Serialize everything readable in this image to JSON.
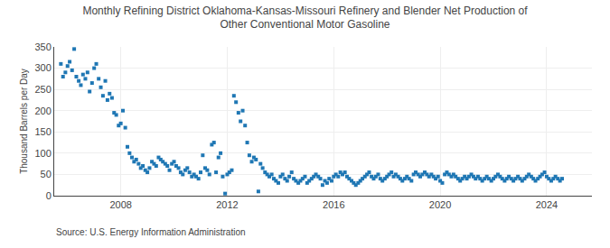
{
  "chart_data": {
    "type": "scatter",
    "title": "Monthly Refining District Oklahoma-Kansas-Missouri Refinery and Blender Net Production of\nOther Conventional Motor Gasoline",
    "ylabel": "Thousand Barrels per Day",
    "annotations": [
      "Source: U.S. Energy Information Administration"
    ],
    "marker": "square",
    "grid": true,
    "xlim": [
      2005.5,
      2025.7
    ],
    "ylim": [
      0,
      350
    ],
    "xticks": [
      2008,
      2012,
      2016,
      2020,
      2024
    ],
    "yticks": [
      0,
      50,
      100,
      150,
      200,
      250,
      300,
      350
    ],
    "x": [
      2005.75,
      2005.83,
      2005.92,
      2006.0,
      2006.08,
      2006.17,
      2006.25,
      2006.33,
      2006.42,
      2006.5,
      2006.58,
      2006.67,
      2006.75,
      2006.83,
      2006.92,
      2007.0,
      2007.08,
      2007.17,
      2007.25,
      2007.33,
      2007.42,
      2007.5,
      2007.58,
      2007.67,
      2007.75,
      2007.83,
      2007.92,
      2008.0,
      2008.08,
      2008.17,
      2008.25,
      2008.33,
      2008.42,
      2008.5,
      2008.58,
      2008.67,
      2008.75,
      2008.83,
      2008.92,
      2009.0,
      2009.08,
      2009.17,
      2009.25,
      2009.33,
      2009.42,
      2009.5,
      2009.58,
      2009.67,
      2009.75,
      2009.83,
      2009.92,
      2010.0,
      2010.08,
      2010.17,
      2010.25,
      2010.33,
      2010.42,
      2010.5,
      2010.58,
      2010.67,
      2010.75,
      2010.83,
      2010.92,
      2011.0,
      2011.08,
      2011.17,
      2011.25,
      2011.33,
      2011.42,
      2011.5,
      2011.58,
      2011.67,
      2011.75,
      2011.83,
      2011.92,
      2012.0,
      2012.08,
      2012.17,
      2012.25,
      2012.33,
      2012.42,
      2012.5,
      2012.58,
      2012.67,
      2012.75,
      2012.83,
      2012.92,
      2013.0,
      2013.08,
      2013.17,
      2013.25,
      2013.33,
      2013.42,
      2013.5,
      2013.58,
      2013.67,
      2013.75,
      2013.83,
      2013.92,
      2014.0,
      2014.08,
      2014.17,
      2014.25,
      2014.33,
      2014.42,
      2014.5,
      2014.58,
      2014.67,
      2014.75,
      2014.83,
      2014.92,
      2015.0,
      2015.08,
      2015.17,
      2015.25,
      2015.33,
      2015.42,
      2015.5,
      2015.58,
      2015.67,
      2015.75,
      2015.83,
      2015.92,
      2016.0,
      2016.08,
      2016.17,
      2016.25,
      2016.33,
      2016.42,
      2016.5,
      2016.58,
      2016.67,
      2016.75,
      2016.83,
      2016.92,
      2017.0,
      2017.08,
      2017.17,
      2017.25,
      2017.33,
      2017.42,
      2017.5,
      2017.58,
      2017.67,
      2017.75,
      2017.83,
      2017.92,
      2018.0,
      2018.08,
      2018.17,
      2018.25,
      2018.33,
      2018.42,
      2018.5,
      2018.58,
      2018.67,
      2018.75,
      2018.83,
      2018.92,
      2019.0,
      2019.08,
      2019.17,
      2019.25,
      2019.33,
      2019.42,
      2019.5,
      2019.58,
      2019.67,
      2019.75,
      2019.83,
      2019.92,
      2020.0,
      2020.08,
      2020.17,
      2020.25,
      2020.33,
      2020.42,
      2020.5,
      2020.58,
      2020.67,
      2020.75,
      2020.83,
      2020.92,
      2021.0,
      2021.08,
      2021.17,
      2021.25,
      2021.33,
      2021.42,
      2021.5,
      2021.58,
      2021.67,
      2021.75,
      2021.83,
      2021.92,
      2022.0,
      2022.08,
      2022.17,
      2022.25,
      2022.33,
      2022.42,
      2022.5,
      2022.58,
      2022.67,
      2022.75,
      2022.83,
      2022.92,
      2023.0,
      2023.08,
      2023.17,
      2023.25,
      2023.33,
      2023.42,
      2023.5,
      2023.58,
      2023.67,
      2023.75,
      2023.83,
      2023.92,
      2024.0,
      2024.08,
      2024.17,
      2024.25,
      2024.33,
      2024.42,
      2024.5,
      2024.58
    ],
    "values": [
      310,
      280,
      290,
      305,
      315,
      295,
      345,
      280,
      270,
      260,
      285,
      275,
      290,
      245,
      265,
      300,
      310,
      275,
      255,
      235,
      270,
      225,
      240,
      230,
      195,
      190,
      165,
      170,
      200,
      160,
      115,
      100,
      90,
      80,
      85,
      75,
      65,
      70,
      60,
      55,
      65,
      80,
      75,
      70,
      90,
      85,
      80,
      75,
      70,
      60,
      75,
      80,
      70,
      65,
      55,
      50,
      60,
      65,
      55,
      45,
      50,
      45,
      40,
      55,
      95,
      65,
      60,
      50,
      120,
      125,
      55,
      90,
      100,
      45,
      5,
      50,
      55,
      60,
      235,
      220,
      195,
      175,
      200,
      165,
      125,
      95,
      80,
      90,
      85,
      10,
      75,
      65,
      55,
      50,
      45,
      50,
      40,
      35,
      30,
      45,
      50,
      40,
      35,
      45,
      55,
      40,
      35,
      30,
      35,
      40,
      45,
      30,
      35,
      40,
      45,
      50,
      45,
      40,
      25,
      35,
      30,
      40,
      35,
      45,
      50,
      45,
      55,
      50,
      55,
      45,
      40,
      35,
      30,
      25,
      30,
      35,
      40,
      45,
      50,
      55,
      45,
      40,
      45,
      50,
      40,
      35,
      40,
      45,
      50,
      55,
      45,
      50,
      45,
      40,
      35,
      40,
      45,
      40,
      35,
      50,
      55,
      50,
      45,
      50,
      55,
      50,
      45,
      50,
      45,
      40,
      45,
      35,
      30,
      50,
      55,
      50,
      45,
      50,
      45,
      40,
      35,
      40,
      45,
      40,
      45,
      50,
      45,
      40,
      45,
      40,
      35,
      40,
      45,
      40,
      35,
      40,
      45,
      50,
      45,
      40,
      35,
      40,
      45,
      40,
      35,
      40,
      45,
      40,
      35,
      40,
      45,
      50,
      45,
      40,
      35,
      40,
      45,
      50,
      55,
      45,
      40,
      35,
      40,
      45,
      40,
      35,
      40
    ]
  }
}
